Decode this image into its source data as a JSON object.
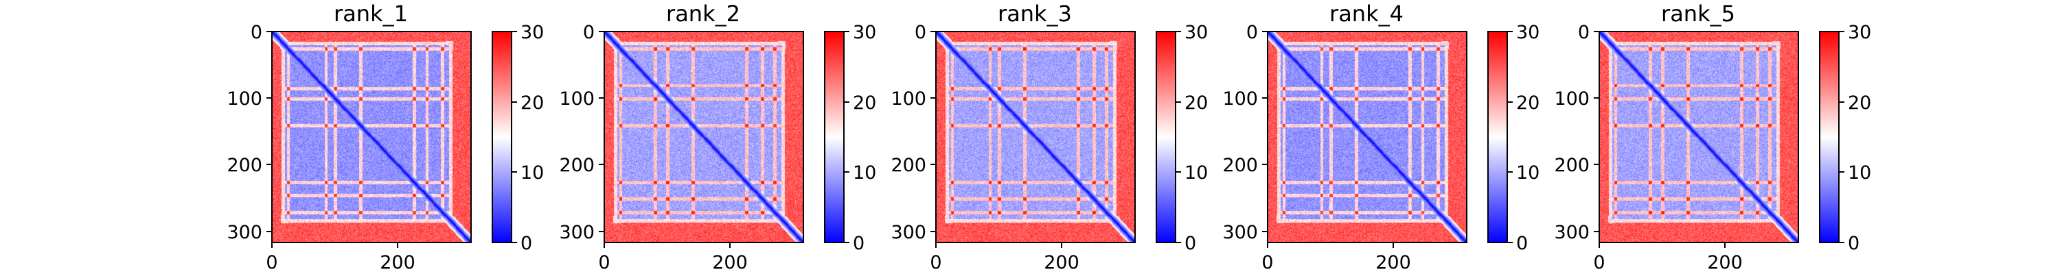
{
  "figure": {
    "panel_count": 5
  },
  "chart_data": [
    {
      "type": "heatmap",
      "title": "rank_1",
      "xlabel": "",
      "ylabel": "",
      "x_ticks": [
        0,
        200
      ],
      "y_ticks": [
        0,
        100,
        200,
        300
      ],
      "xlim": [
        0,
        316
      ],
      "ylim": [
        316,
        0
      ],
      "matrix_size": 316,
      "colorbar": {
        "min": 0,
        "max": 30,
        "ticks": [
          0,
          10,
          20,
          30
        ],
        "colormap": "bwr"
      },
      "description_values": {
        "diagonal": 0,
        "core_block": [
          20,
          280
        ],
        "core_level": 6,
        "edge_level": 28
      },
      "bright_rows": [
        25,
        85,
        100,
        140,
        225,
        245,
        270
      ]
    },
    {
      "type": "heatmap",
      "title": "rank_2",
      "xlabel": "",
      "ylabel": "",
      "x_ticks": [
        0,
        200
      ],
      "y_ticks": [
        0,
        100,
        200,
        300
      ],
      "xlim": [
        0,
        316
      ],
      "ylim": [
        316,
        0
      ],
      "matrix_size": 316,
      "colorbar": {
        "min": 0,
        "max": 30,
        "ticks": [
          0,
          10,
          20,
          30
        ],
        "colormap": "bwr"
      },
      "description_values": {
        "diagonal": 0,
        "core_block": [
          20,
          280
        ],
        "core_level": 7,
        "edge_level": 28
      },
      "bright_rows": [
        25,
        80,
        100,
        140,
        225,
        250,
        270
      ]
    },
    {
      "type": "heatmap",
      "title": "rank_3",
      "xlabel": "",
      "ylabel": "",
      "x_ticks": [
        0,
        200
      ],
      "y_ticks": [
        0,
        100,
        200,
        300
      ],
      "xlim": [
        0,
        316
      ],
      "ylim": [
        316,
        0
      ],
      "matrix_size": 316,
      "colorbar": {
        "min": 0,
        "max": 30,
        "ticks": [
          0,
          10,
          20,
          30
        ],
        "colormap": "bwr"
      },
      "description_values": {
        "diagonal": 0,
        "core_block": [
          20,
          280
        ],
        "core_level": 7,
        "edge_level": 28
      },
      "bright_rows": [
        25,
        85,
        100,
        140,
        225,
        250,
        270
      ]
    },
    {
      "type": "heatmap",
      "title": "rank_4",
      "xlabel": "",
      "ylabel": "",
      "x_ticks": [
        0,
        200
      ],
      "y_ticks": [
        0,
        100,
        200,
        300
      ],
      "xlim": [
        0,
        316
      ],
      "ylim": [
        316,
        0
      ],
      "matrix_size": 316,
      "colorbar": {
        "min": 0,
        "max": 30,
        "ticks": [
          0,
          10,
          20,
          30
        ],
        "colormap": "bwr"
      },
      "description_values": {
        "diagonal": 0,
        "core_block": [
          20,
          280
        ],
        "core_level": 6,
        "edge_level": 28
      },
      "bright_rows": [
        25,
        85,
        100,
        140,
        225,
        245,
        270
      ]
    },
    {
      "type": "heatmap",
      "title": "rank_5",
      "xlabel": "",
      "ylabel": "",
      "x_ticks": [
        0,
        200
      ],
      "y_ticks": [
        0,
        100,
        200,
        300
      ],
      "xlim": [
        0,
        316
      ],
      "ylim": [
        316,
        0
      ],
      "matrix_size": 316,
      "colorbar": {
        "min": 0,
        "max": 30,
        "ticks": [
          0,
          10,
          20,
          30
        ],
        "colormap": "bwr"
      },
      "description_values": {
        "diagonal": 0,
        "core_block": [
          20,
          280
        ],
        "core_level": 7,
        "edge_level": 28
      },
      "bright_rows": [
        25,
        80,
        100,
        140,
        225,
        250,
        270
      ]
    }
  ]
}
